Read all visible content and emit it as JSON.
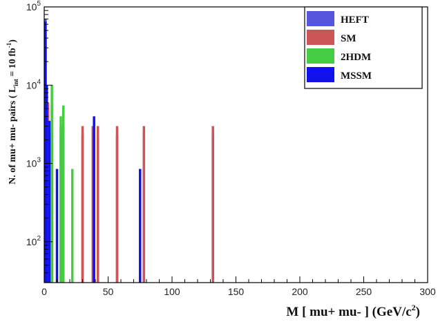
{
  "chart_data": {
    "type": "bar",
    "chart_kind": "stacked histogram",
    "xlabel": "M [ mu+ mu- ] (GeV/c²)",
    "ylabel": "N. of mu+ mu- pairs  ( L_int = 10 fb⁻¹ )",
    "xlim": [
      0,
      300
    ],
    "ylim": [
      30,
      100000
    ],
    "y_scale": "log",
    "x_ticks": [
      0,
      50,
      100,
      150,
      200,
      250,
      300
    ],
    "y_ticks": [
      {
        "value": 100,
        "base": "10",
        "exp": "2"
      },
      {
        "value": 1000,
        "base": "10",
        "exp": "3"
      },
      {
        "value": 10000,
        "base": "10",
        "exp": "4"
      },
      {
        "value": 100000,
        "base": "10",
        "exp": "5"
      }
    ],
    "grid": false,
    "legend_position": "top-right",
    "series": [
      {
        "name": "HEFT",
        "color": "#5555dd",
        "points": [
          {
            "x": 1,
            "y": 70000
          },
          {
            "x": 2,
            "y": 9000
          },
          {
            "x": 3,
            "y": 5000
          },
          {
            "x": 4,
            "y": 2500
          },
          {
            "x": 6,
            "y": 2500
          },
          {
            "x": 13,
            "y": 2300
          },
          {
            "x": 15,
            "y": 2300
          },
          {
            "x": 30,
            "y": 2300
          },
          {
            "x": 38,
            "y": 2300
          },
          {
            "x": 42,
            "y": 2300
          },
          {
            "x": 57,
            "y": 2300
          },
          {
            "x": 78,
            "y": 2300
          },
          {
            "x": 132,
            "y": 2300
          }
        ]
      },
      {
        "name": "SM",
        "color": "#cc5555",
        "points": [
          {
            "x": 1,
            "y": 40000
          },
          {
            "x": 3,
            "y": 6000
          },
          {
            "x": 6,
            "y": 5500
          },
          {
            "x": 13,
            "y": 3000
          },
          {
            "x": 15,
            "y": 3000
          },
          {
            "x": 30,
            "y": 3000
          },
          {
            "x": 38,
            "y": 3000
          },
          {
            "x": 42,
            "y": 3000
          },
          {
            "x": 57,
            "y": 3000
          },
          {
            "x": 78,
            "y": 3000
          },
          {
            "x": 132,
            "y": 3000
          }
        ]
      },
      {
        "name": "2HDM",
        "color": "#44cc44",
        "points": [
          {
            "x": 1,
            "y": 30000
          },
          {
            "x": 2,
            "y": 7000
          },
          {
            "x": 6,
            "y": 10000
          },
          {
            "x": 13,
            "y": 4000
          },
          {
            "x": 15,
            "y": 5500
          },
          {
            "x": 22,
            "y": 850
          }
        ]
      },
      {
        "name": "MSSM",
        "color": "#1111ee",
        "points": [
          {
            "x": 1,
            "y": 65000
          },
          {
            "x": 2,
            "y": 10000
          },
          {
            "x": 4,
            "y": 3500
          },
          {
            "x": 10,
            "y": 850
          },
          {
            "x": 39,
            "y": 4000
          },
          {
            "x": 75,
            "y": 850
          }
        ]
      }
    ]
  }
}
